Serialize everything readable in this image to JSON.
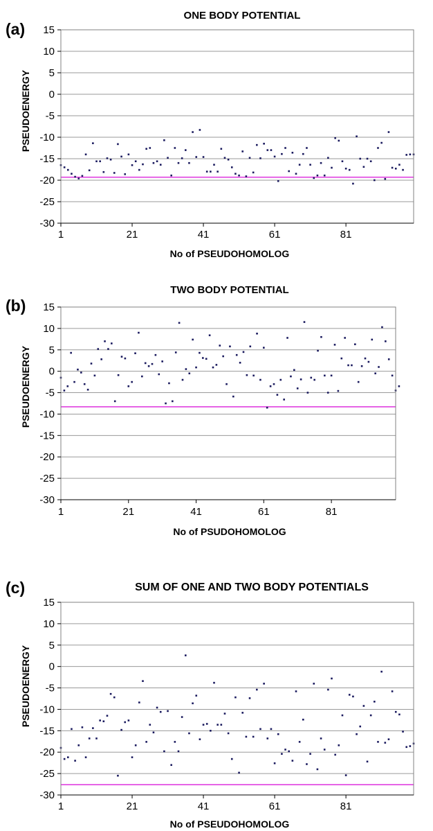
{
  "chart_data": [
    {
      "type": "scatter",
      "panel_label": "(a)",
      "title": "ONE BODY POTENTIAL",
      "xlabel": "No of PSEUDOHOMOLOG",
      "ylabel": "PSEUDOENERGY",
      "xlim": [
        1,
        100
      ],
      "ylim": [
        -30,
        15
      ],
      "x_ticks": [
        1,
        21,
        41,
        61,
        81
      ],
      "y_ticks": [
        15,
        10,
        5,
        0,
        -5,
        -10,
        -15,
        -20,
        -25,
        -30
      ],
      "grid": true,
      "threshold": -19.3,
      "colors": {
        "points": "#1a1a5e",
        "threshold": "#e040e0",
        "grid": "#9a9a9a"
      },
      "y": [
        -16.5,
        -17,
        -17.6,
        -18.5,
        -19.2,
        -19.6,
        -19,
        -14,
        -17.7,
        -11.4,
        -15.6,
        -15.6,
        -18.1,
        -14.9,
        -15.2,
        -18.3,
        -11.6,
        -14.5,
        -18.6,
        -14,
        -16.5,
        -15.6,
        -17.6,
        -16.3,
        -12.7,
        -12.5,
        -16,
        -15.6,
        -16.4,
        -10.7,
        -14.8,
        -18.9,
        -12.5,
        -16,
        -14.9,
        -13,
        -16,
        -8.8,
        -14.6,
        -8.3,
        -14.6,
        -18,
        -18,
        -16.4,
        -18,
        -12.7,
        -14.8,
        -15.2,
        -17,
        -18.5,
        -18.9,
        -13.3,
        -19.1,
        -14.8,
        -18.2,
        -11.8,
        -14.9,
        -11.5,
        -13,
        -13,
        -14.5,
        -20.2,
        -13.9,
        -12.5,
        -17.9,
        -13.6,
        -18.5,
        -16.4,
        -13.9,
        -12.5,
        -16.4,
        -19.5,
        -18.9,
        -16,
        -18.9,
        -14.8,
        -17.1,
        -10.2,
        -10.8,
        -15.6,
        -17.3,
        -17.6,
        -20.8,
        -9.8,
        -15,
        -16.9,
        -15,
        -15.6,
        -20,
        -12.5,
        -11.3,
        -19.7,
        -8.8,
        -17.1,
        -17.3,
        -16.4,
        -17.6,
        -14.1,
        -14,
        -14
      ]
    },
    {
      "type": "scatter",
      "panel_label": "(b)",
      "title": "TWO BODY POTENTIAL",
      "xlabel": "No of PSUDOHOMOLOG",
      "ylabel": "PSEUDOENERGY",
      "xlim": [
        1,
        100
      ],
      "ylim": [
        -30,
        15
      ],
      "x_ticks": [
        1,
        21,
        41,
        61,
        81
      ],
      "y_ticks": [
        15,
        10,
        5,
        0,
        -5,
        -10,
        -15,
        -20,
        -25,
        -30
      ],
      "grid": true,
      "threshold": -8.3,
      "colors": {
        "points": "#1a1a5e",
        "threshold": "#e040e0",
        "grid": "#9a9a9a"
      },
      "y": [
        -1.5,
        -4.5,
        -3.5,
        4.3,
        -2.5,
        0.4,
        -0.3,
        -3,
        -4.3,
        1.8,
        -1,
        5.2,
        2.8,
        7,
        5.2,
        6.5,
        -7,
        -0.9,
        3.4,
        3,
        -3.5,
        -2.5,
        4.2,
        9,
        -1.2,
        1.9,
        1.2,
        1.7,
        3.8,
        -0.7,
        2.3,
        -7.5,
        -2.8,
        -7,
        4.4,
        11.3,
        -2,
        0.5,
        -0.5,
        7.4,
        0.9,
        4.3,
        3.1,
        2.9,
        8.4,
        0.9,
        1.5,
        6,
        3.5,
        -3,
        5.8,
        -5.9,
        3.8,
        2,
        4.5,
        -0.9,
        5.8,
        -1,
        8.8,
        -2,
        5.5,
        -8.5,
        -3.5,
        -3,
        -5.5,
        -2,
        -6.6,
        7.8,
        -1.2,
        0.3,
        -4,
        -1.9,
        11.5,
        -5,
        -1.5,
        -2,
        4.8,
        8,
        -1,
        -5,
        -1,
        6.2,
        -4.6,
        3,
        7.8,
        1.4,
        1.4,
        6.3,
        -2.5,
        1.2,
        3,
        2.2,
        7.4,
        -0.5,
        1,
        10.3,
        7,
        2.8,
        -1,
        -4.5,
        -3.5
      ]
    },
    {
      "type": "scatter",
      "panel_label": "(c)",
      "title": "SUM OF ONE AND TWO BODY POTENTIALS",
      "xlabel": "No of PSEUDOHOMOLOG",
      "ylabel": "PSEUDOENERGY",
      "xlim": [
        1,
        100
      ],
      "ylim": [
        -30,
        15
      ],
      "x_ticks": [
        1,
        21,
        41,
        61,
        81
      ],
      "y_ticks": [
        15,
        10,
        5,
        0,
        -5,
        -10,
        -15,
        -20,
        -25,
        -30
      ],
      "grid": true,
      "threshold": -27.6,
      "colors": {
        "points": "#1a1a5e",
        "threshold": "#e040e0",
        "grid": "#9a9a9a"
      },
      "y": [
        -19,
        -21.6,
        -21.2,
        -14.6,
        -22,
        -18.4,
        -14.2,
        -21.2,
        -16.8,
        -14.4,
        -16.8,
        -12.6,
        -12.8,
        -11.5,
        -6.4,
        -7.2,
        -25.5,
        -14.8,
        -13,
        -12.6,
        -21.2,
        -18.4,
        -8.4,
        -3.4,
        -17.6,
        -13.6,
        -15.4,
        -9.6,
        -10.6,
        -19.8,
        -10.4,
        -23,
        -17.6,
        -19.8,
        -11.8,
        2.6,
        -15.6,
        -8.6,
        -6.8,
        -17,
        -13.6,
        -13.4,
        -15,
        -3.8,
        -13.6,
        -13.6,
        -11,
        -15.6,
        -21.6,
        -7.2,
        -24.8,
        -10.8,
        -16.4,
        -7.4,
        -16.4,
        -5.4,
        -14.6,
        -4,
        -16.8,
        -14.6,
        -22.6,
        -15.8,
        -20.4,
        -19.4,
        -19.8,
        -22,
        -5.8,
        -17.6,
        -12.4,
        -22.8,
        -20.4,
        -4,
        -24,
        -16.8,
        -19.4,
        -5.4,
        -2.8,
        -20.6,
        -18.4,
        -11.4,
        -25.4,
        -6.6,
        -7,
        -15.8,
        -14,
        -9.2,
        -22.2,
        -11.4,
        -8.2,
        -17.6,
        -1.2,
        -17.8,
        -17,
        -5.8,
        -10.6,
        -11.2,
        -15.2,
        -18.8,
        -18.6,
        -18
      ]
    }
  ]
}
